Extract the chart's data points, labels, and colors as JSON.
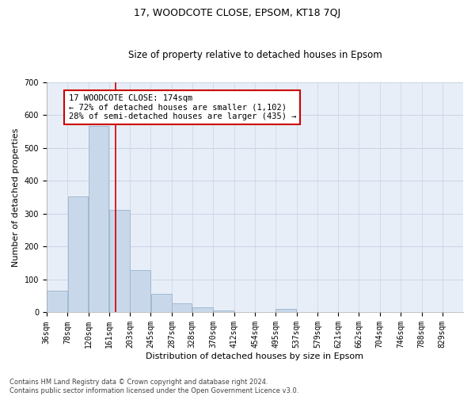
{
  "title": "17, WOODCOTE CLOSE, EPSOM, KT18 7QJ",
  "subtitle": "Size of property relative to detached houses in Epsom",
  "xlabel": "Distribution of detached houses by size in Epsom",
  "ylabel": "Number of detached properties",
  "footer_line1": "Contains HM Land Registry data © Crown copyright and database right 2024.",
  "footer_line2": "Contains public sector information licensed under the Open Government Licence v3.0.",
  "bar_edges": [
    36,
    78,
    120,
    161,
    203,
    245,
    287,
    328,
    370,
    412,
    454,
    495,
    537,
    579,
    621,
    662,
    704,
    746,
    788,
    829,
    871
  ],
  "bar_heights": [
    67,
    352,
    567,
    312,
    128,
    56,
    27,
    15,
    6,
    2,
    0,
    10,
    0,
    0,
    0,
    0,
    0,
    0,
    0,
    0
  ],
  "bar_color": "#c8d8ea",
  "bar_edgecolor": "#9ab4cc",
  "vline_x": 174,
  "vline_color": "#cc0000",
  "ylim": [
    0,
    700
  ],
  "yticks": [
    0,
    100,
    200,
    300,
    400,
    500,
    600,
    700
  ],
  "annotation_text": "17 WOODCOTE CLOSE: 174sqm\n← 72% of detached houses are smaller (1,102)\n28% of semi-detached houses are larger (435) →",
  "annotation_box_color": "#cc0000",
  "grid_color": "#c8d4e4",
  "bg_color": "#e8eef8",
  "fig_bg_color": "#ffffff",
  "title_fontsize": 9,
  "subtitle_fontsize": 8.5,
  "ylabel_fontsize": 8,
  "xlabel_fontsize": 8,
  "tick_fontsize": 7,
  "annotation_fontsize": 7.5,
  "footer_fontsize": 6
}
